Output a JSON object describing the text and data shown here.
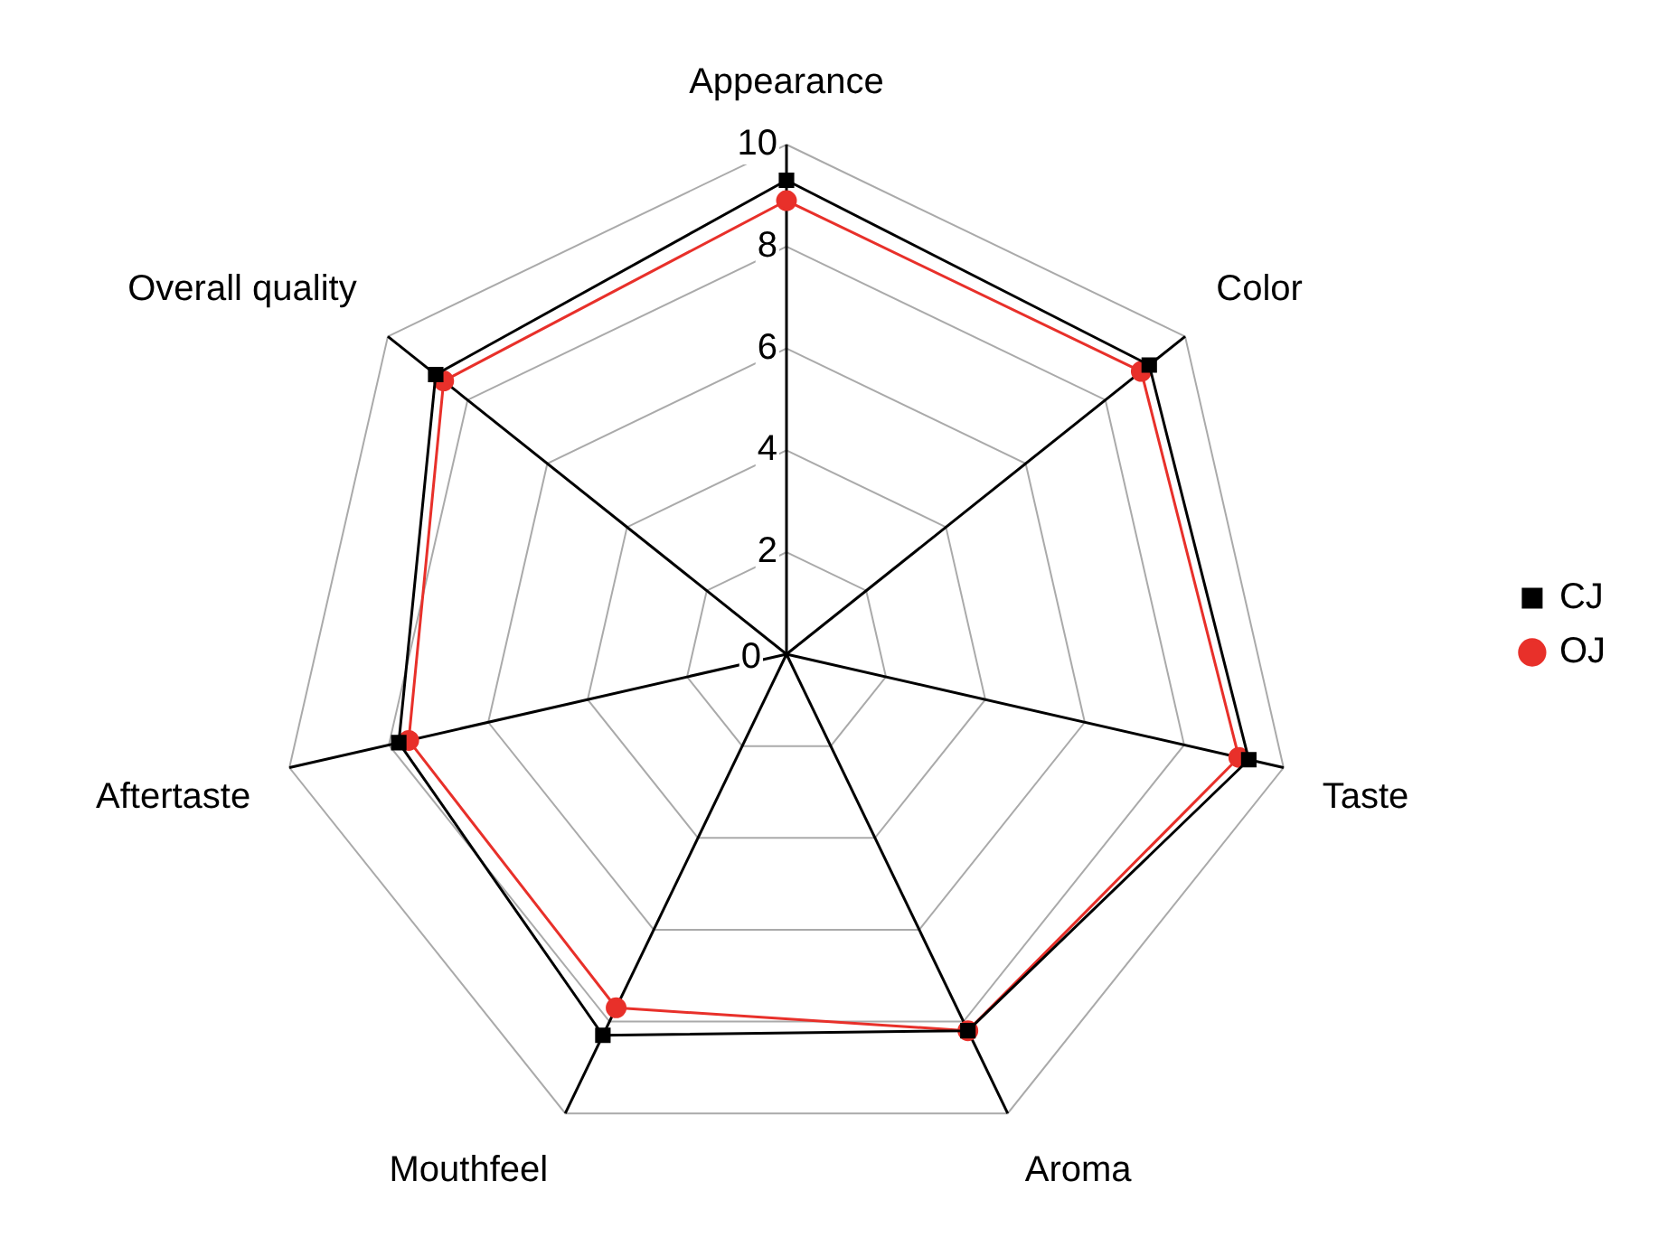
{
  "chart_data": {
    "type": "radar",
    "categories": [
      "Appearance",
      "Color",
      "Taste",
      "Aroma",
      "Mouthfeel",
      "Aftertaste",
      "Overall quality"
    ],
    "series": [
      {
        "name": "CJ",
        "color": "#000000",
        "marker": "square",
        "values": [
          9.3,
          9.1,
          9.3,
          8.2,
          8.3,
          7.8,
          8.8
        ]
      },
      {
        "name": "OJ",
        "color": "#e8302a",
        "marker": "circle",
        "values": [
          8.9,
          8.9,
          9.1,
          8.2,
          7.7,
          7.6,
          8.6
        ]
      }
    ],
    "ylim": [
      0,
      10
    ],
    "yticks": [
      0,
      2,
      4,
      6,
      8,
      10
    ],
    "grid": true,
    "legend": "right"
  }
}
